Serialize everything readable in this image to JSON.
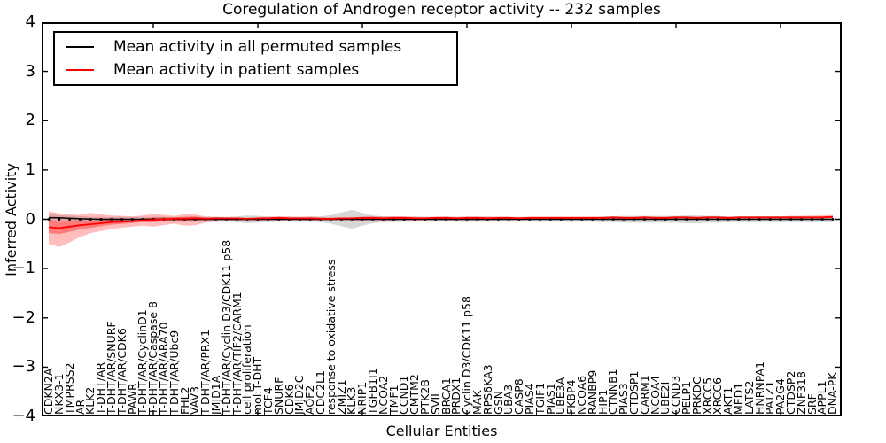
{
  "figure": {
    "title": "Coregulation of Androgen receptor activity -- 232 samples"
  },
  "legend": {
    "items": [
      {
        "label": "Mean activity in all permuted samples",
        "color": "#000000"
      },
      {
        "label": "Mean activity in patient samples",
        "color": "#ff0000"
      }
    ]
  },
  "axes": {
    "xlabel": "Cellular Entities",
    "ylabel": "Inferred Activity"
  },
  "chart_data": {
    "type": "line",
    "title": "Coregulation of Androgen receptor activity -- 232 samples",
    "xlabel": "Cellular Entities",
    "ylabel": "Inferred Activity",
    "ylim": [
      -4,
      4
    ],
    "yticks": [
      4,
      3,
      2,
      1,
      0,
      -1,
      -2,
      -3,
      -4
    ],
    "ytick_labels": [
      "4",
      "3",
      "2",
      "1",
      "0",
      "−1",
      "−2",
      "−3",
      "−4"
    ],
    "grid": false,
    "legend_position": "upper left",
    "categories": [
      "CDKN2A",
      "NKX3-1",
      "TMPRSS2",
      "AR",
      "KLK2",
      "T-DHT/AR",
      "T-DHT/AR/SNURF",
      "T-DHT/AR/CDK6",
      "PAWR",
      "T-DHT/AR/CyclinD1",
      "T-DHT/AR/Caspase 8",
      "T-DHT/AR/ARA70",
      "T-DHT/AR/Ubc9",
      "FHL2",
      "VAV3",
      "T-DHT/AR/PRX1",
      "JMJD1A",
      "T-DHT/AR/Cyclin D3/CDK11 p58",
      "T-DHT/AR/TIF2/CARM1",
      "cell proliferation",
      "mol:T-DHT",
      "TCF4",
      "SNURF",
      "CDK6",
      "JMJD2C",
      "AOF2",
      "CDC2L1",
      "response to oxidative stress",
      "ZMIZ1",
      "KLK3",
      "NRIP1",
      "TGFB1I1",
      "NCOA2",
      "TMF1",
      "CCND1",
      "CMTM2",
      "PTK2B",
      "SVIL",
      "BRCA1",
      "PRDX1",
      "Cyclin D3/CDK11 p58",
      "MAK",
      "RPS6KA3",
      "GSN",
      "UBA3",
      "CASP8",
      "PIAS4",
      "TGIF1",
      "PIAS1",
      "UBE3A",
      "FKBP4",
      "NCOA6",
      "RANBP9",
      "HIP1",
      "CTNNB1",
      "PIAS3",
      "CTDSP1",
      "CARM1",
      "NCOA4",
      "UBE2I",
      "CCND3",
      "PELP1",
      "PRKDC",
      "XRCC5",
      "XRCC6",
      "AKT1",
      "MED1",
      "LATS2",
      "HNRNPA1",
      "PATZ1",
      "PA2G4",
      "CTDSP2",
      "ZNF318",
      "SRF",
      "APPL1",
      "DNA-PK"
    ],
    "series": [
      {
        "name": "Mean activity in all permuted samples",
        "color": "#000000",
        "values": [
          0.035,
          0.03,
          0.02,
          0.01,
          0.005,
          0,
          0,
          0,
          0,
          0,
          0,
          0,
          0,
          0,
          0,
          0,
          0,
          0,
          0,
          0,
          0,
          0,
          0,
          0,
          0,
          0,
          0,
          0,
          0,
          0,
          0,
          0,
          0,
          0,
          0,
          0,
          0,
          0,
          0,
          0,
          0,
          0,
          0,
          0,
          0,
          0,
          0,
          0,
          0,
          0,
          0,
          0,
          0,
          0,
          0,
          0,
          0,
          0,
          0,
          0,
          0,
          0,
          0,
          0,
          0,
          0,
          0,
          0,
          0,
          0,
          0,
          0,
          0,
          0,
          0,
          0
        ]
      },
      {
        "name": "Mean activity in patient samples",
        "color": "#ff0000",
        "values": [
          -0.16,
          -0.18,
          -0.15,
          -0.12,
          -0.1,
          -0.08,
          -0.06,
          -0.05,
          -0.04,
          -0.02,
          -0.01,
          0.0,
          0.01,
          0.01,
          0.02,
          0.01,
          0.02,
          0.02,
          0.02,
          0.01,
          0.02,
          0.02,
          0.03,
          0.02,
          0.02,
          0.02,
          0.01,
          0.01,
          0.02,
          0.02,
          0.03,
          0.03,
          0.02,
          0.03,
          0.03,
          0.02,
          0.02,
          0.03,
          0.03,
          0.02,
          0.03,
          0.03,
          0.02,
          0.03,
          0.03,
          0.02,
          0.03,
          0.03,
          0.03,
          0.03,
          0.03,
          0.03,
          0.03,
          0.03,
          0.04,
          0.03,
          0.03,
          0.04,
          0.03,
          0.03,
          0.04,
          0.04,
          0.03,
          0.04,
          0.04,
          0.03,
          0.04,
          0.04,
          0.04,
          0.04,
          0.04,
          0.04,
          0.04,
          0.04,
          0.04,
          0.05
        ]
      }
    ],
    "bands": [
      {
        "name": "permuted-samples-spread",
        "color": "#8c8c8c",
        "opacity": 0.35,
        "upper": [
          0.1,
          0.085,
          0.07,
          0.065,
          0.05,
          0.05,
          0.05,
          0.05,
          0.05,
          0.05,
          0.05,
          0.05,
          0.05,
          0.05,
          0.05,
          0.05,
          0.05,
          0.05,
          0.06,
          0.08,
          0.07,
          0.06,
          0.05,
          0.05,
          0.05,
          0.05,
          0.06,
          0.09,
          0.14,
          0.19,
          0.13,
          0.08,
          0.06,
          0.06,
          0.05,
          0.05,
          0.05,
          0.05,
          0.05,
          0.05,
          0.06,
          0.05,
          0.05,
          0.05,
          0.05,
          0.05,
          0.05,
          0.05,
          0.05,
          0.05,
          0.05,
          0.05,
          0.05,
          0.06,
          0.06,
          0.07,
          0.07,
          0.07,
          0.07,
          0.07,
          0.07,
          0.08,
          0.08,
          0.07,
          0.07,
          0.06,
          0.06,
          0.06,
          0.06,
          0.06,
          0.06,
          0.06,
          0.06,
          0.06,
          0.06,
          0.06
        ],
        "lower": [
          -0.06,
          -0.055,
          -0.05,
          -0.055,
          -0.05,
          -0.05,
          -0.05,
          -0.05,
          -0.05,
          -0.05,
          -0.05,
          -0.05,
          -0.05,
          -0.05,
          -0.05,
          -0.05,
          -0.05,
          -0.05,
          -0.06,
          -0.08,
          -0.07,
          -0.06,
          -0.05,
          -0.05,
          -0.05,
          -0.05,
          -0.06,
          -0.09,
          -0.14,
          -0.19,
          -0.13,
          -0.08,
          -0.06,
          -0.06,
          -0.05,
          -0.05,
          -0.05,
          -0.05,
          -0.05,
          -0.05,
          -0.06,
          -0.05,
          -0.05,
          -0.05,
          -0.05,
          -0.05,
          -0.05,
          -0.05,
          -0.05,
          -0.05,
          -0.05,
          -0.05,
          -0.05,
          -0.06,
          -0.06,
          -0.07,
          -0.07,
          -0.07,
          -0.07,
          -0.07,
          -0.07,
          -0.08,
          -0.08,
          -0.07,
          -0.07,
          -0.06,
          -0.06,
          -0.06,
          -0.06,
          -0.06,
          -0.06,
          -0.06,
          -0.06,
          -0.06,
          -0.06,
          -0.06
        ]
      },
      {
        "name": "patient-samples-spread",
        "color": "#ff0000",
        "opacity": 0.26,
        "upper": [
          0.16,
          0.12,
          0.1,
          0.09,
          0.13,
          0.1,
          0.08,
          0.07,
          0.06,
          0.08,
          0.11,
          0.09,
          0.07,
          0.1,
          0.1,
          0.06,
          0.05,
          0.04,
          0.04,
          0.03,
          0.04,
          0.05,
          0.06,
          0.06,
          0.05,
          0.06,
          0.05,
          0.04,
          0.04,
          0.04,
          0.05,
          0.06,
          0.06,
          0.06,
          0.06,
          0.06,
          0.05,
          0.05,
          0.06,
          0.05,
          0.05,
          0.06,
          0.06,
          0.05,
          0.05,
          0.05,
          0.05,
          0.05,
          0.05,
          0.05,
          0.05,
          0.05,
          0.05,
          0.05,
          0.06,
          0.05,
          0.05,
          0.06,
          0.05,
          0.05,
          0.06,
          0.06,
          0.05,
          0.06,
          0.06,
          0.05,
          0.06,
          0.06,
          0.06,
          0.06,
          0.06,
          0.07,
          0.07,
          0.08,
          0.08,
          0.09
        ],
        "lower": [
          -0.5,
          -0.56,
          -0.47,
          -0.36,
          -0.28,
          -0.24,
          -0.2,
          -0.17,
          -0.15,
          -0.13,
          -0.15,
          -0.12,
          -0.09,
          -0.13,
          -0.12,
          -0.07,
          -0.05,
          -0.04,
          -0.03,
          -0.03,
          -0.03,
          -0.04,
          -0.04,
          -0.04,
          -0.04,
          -0.04,
          -0.03,
          -0.02,
          -0.02,
          -0.02,
          -0.03,
          -0.03,
          -0.03,
          -0.03,
          -0.03,
          -0.03,
          -0.02,
          -0.02,
          -0.02,
          -0.02,
          -0.02,
          -0.02,
          -0.02,
          -0.01,
          -0.01,
          -0.01,
          -0.01,
          -0.01,
          -0.01,
          -0.01,
          -0.01,
          -0.01,
          -0.01,
          -0.01,
          -0.01,
          -0.01,
          -0.01,
          -0.01,
          -0.01,
          -0.01,
          -0.01,
          -0.01,
          -0.01,
          -0.01,
          0.0,
          0.0,
          0.0,
          0.0,
          0.0,
          0.0,
          0.0,
          0.0,
          0.01,
          0.01,
          0.01,
          0.02
        ]
      }
    ],
    "zero_marker_line": {
      "y": 0,
      "marker": "square",
      "color": "#000000"
    }
  }
}
